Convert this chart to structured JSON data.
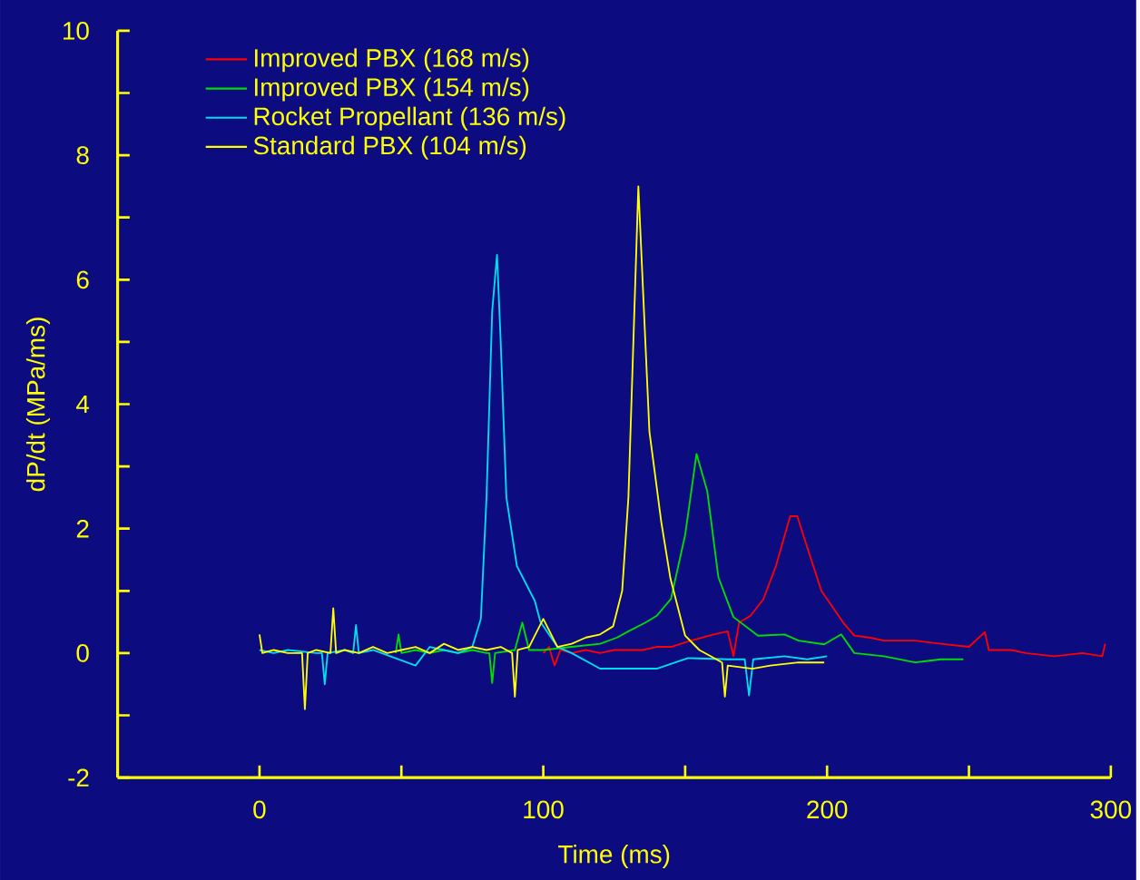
{
  "chart_data": {
    "type": "line",
    "xlabel": "Time (ms)",
    "ylabel": "dP/dt (MPa/ms)",
    "xlim": [
      -50,
      300
    ],
    "ylim": [
      -2,
      10
    ],
    "xticks": [
      0,
      {
        "value": 50,
        "label": null
      },
      100,
      {
        "value": 150,
        "label": null
      },
      200,
      {
        "value": 250,
        "label": null
      },
      300
    ],
    "yticks": [
      -2,
      {
        "value": -1,
        "label": null
      },
      0,
      {
        "value": 1,
        "label": null
      },
      2,
      {
        "value": 3,
        "label": null
      },
      4,
      {
        "value": 5,
        "label": null
      },
      6,
      {
        "value": 7,
        "label": null
      },
      8,
      {
        "value": 9,
        "label": null
      },
      10
    ],
    "legend": "top left",
    "series": [
      {
        "name": "Improved PBX (168 m/s)",
        "color": "#ff0000",
        "x": [
          100,
          102,
          104,
          106,
          110,
          115,
          120,
          125,
          131,
          135,
          140,
          145,
          152,
          160,
          165,
          167,
          169,
          173,
          177.6,
          182,
          187,
          189.5,
          193,
          198,
          205.7,
          209.6,
          215,
          220,
          231,
          240,
          250,
          255.6,
          257,
          265,
          270,
          280,
          290,
          297,
          298
        ],
        "values": [
          0,
          0.1,
          -0.2,
          0.05,
          0,
          0.05,
          0,
          0.05,
          0.05,
          0.05,
          0.1,
          0.1,
          0.2,
          0.3,
          0.35,
          -0.05,
          0.49,
          0.6,
          0.87,
          1.4,
          2.2,
          2.2,
          1.7,
          1.0,
          0.49,
          0.28,
          0.25,
          0.2,
          0.2,
          0.15,
          0.1,
          0.34,
          0.05,
          0.05,
          0,
          -0.05,
          0,
          -0.05,
          0.15
        ]
      },
      {
        "name": "Improved PBX (154 m/s)",
        "color": "#00dd00",
        "x": [
          48,
          49,
          50,
          55,
          60,
          65,
          70,
          75,
          80,
          81,
          82,
          83,
          90,
          92.6,
          95,
          100,
          110,
          120,
          126,
          130,
          136,
          140,
          145,
          150,
          154,
          157.8,
          161.7,
          167,
          175.7,
          185,
          190,
          199,
          205,
          209.6,
          220,
          231,
          240,
          248
        ],
        "values": [
          0,
          0.3,
          0,
          0.05,
          0,
          0.05,
          0,
          0.05,
          0,
          0,
          -0.48,
          0,
          0.05,
          0.49,
          0.05,
          0.05,
          0.1,
          0.15,
          0.25,
          0.35,
          0.49,
          0.6,
          0.87,
          1.9,
          3.2,
          2.6,
          1.22,
          0.58,
          0.28,
          0.3,
          0.2,
          0.14,
          0.3,
          0,
          -0.05,
          -0.15,
          -0.1,
          -0.1
        ]
      },
      {
        "name": "Rocket Propellant (136 m/s)",
        "color": "#00ddee",
        "x": [
          0,
          5,
          10,
          20,
          22,
          23,
          24,
          30,
          33,
          34,
          35,
          40,
          55,
          60,
          65,
          70,
          75,
          78,
          80,
          82,
          83.7,
          85,
          87,
          90.7,
          97,
          99,
          105,
          110,
          120,
          130,
          140,
          151,
          165,
          171,
          172.5,
          174,
          185,
          193,
          200
        ],
        "values": [
          0.05,
          0,
          0.05,
          0,
          0,
          -0.5,
          0,
          0.05,
          0,
          0.45,
          0,
          0.05,
          -0.2,
          0.1,
          0.05,
          0,
          0.1,
          0.55,
          2.5,
          5.5,
          6.4,
          5.0,
          2.5,
          1.4,
          0.84,
          0.5,
          0.1,
          0,
          -0.25,
          -0.25,
          -0.25,
          -0.08,
          -0.1,
          -0.1,
          -0.68,
          -0.1,
          -0.05,
          -0.1,
          -0.05
        ]
      },
      {
        "name": "Standard PBX (104 m/s)",
        "color": "#ffff00",
        "x": [
          0,
          1,
          5,
          10,
          15,
          16,
          17,
          20,
          25,
          26,
          27,
          30,
          35,
          40,
          45,
          50,
          55,
          60,
          65,
          70,
          75,
          80,
          85,
          89,
          90,
          91,
          95,
          100,
          105,
          110,
          115,
          120,
          124.6,
          127.8,
          130,
          133.5,
          137.4,
          141.6,
          144.8,
          150,
          155,
          161,
          163,
          164,
          165,
          173.7,
          180,
          190,
          199
        ],
        "values": [
          0.3,
          0,
          0.05,
          0,
          0,
          -0.9,
          0,
          0.05,
          0,
          0.72,
          0,
          0.05,
          0,
          0.1,
          0,
          0.05,
          0.1,
          0,
          0.15,
          0.05,
          0.1,
          0.05,
          0.1,
          0,
          -0.7,
          0.05,
          0.1,
          0.55,
          0.1,
          0.15,
          0.25,
          0.3,
          0.43,
          1.0,
          2.5,
          7.5,
          3.56,
          2.1,
          1.2,
          0.28,
          0.05,
          -0.1,
          -0.15,
          -0.7,
          -0.2,
          -0.25,
          -0.2,
          -0.15,
          -0.15
        ]
      }
    ]
  }
}
